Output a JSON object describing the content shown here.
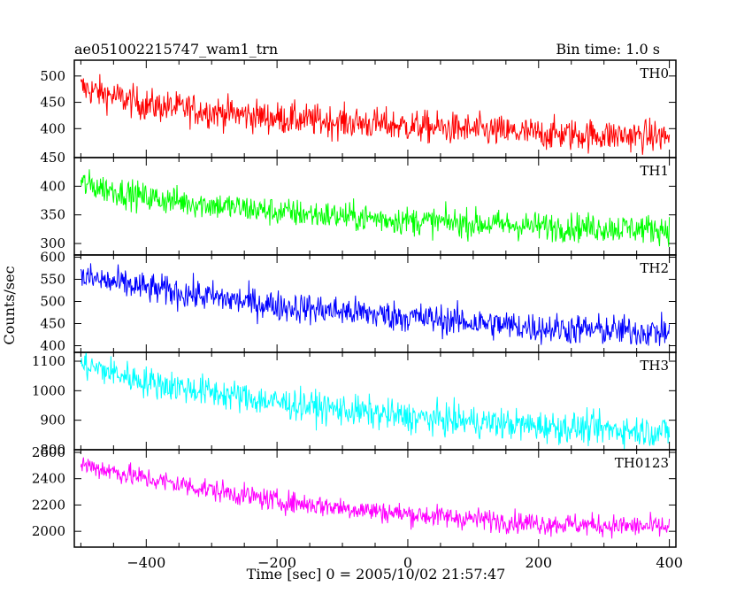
{
  "header": {
    "title": "ae051002215747_wam1_trn",
    "bin_time": "Bin time: 1.0 s"
  },
  "chart_data": {
    "type": "line",
    "xlabel": "Time [sec] 0 = 2005/10/02 21:57:47",
    "ylabel": "Counts/sec",
    "xlim": [
      -510,
      410
    ],
    "xticks": [
      -400,
      -200,
      0,
      200,
      400
    ],
    "xtick_labels": [
      "−400",
      "−200",
      "0",
      "200",
      "400"
    ],
    "grid": false,
    "panels": [
      {
        "name": "TH0",
        "color": "#ff0000",
        "ylim": [
          345,
          530
        ],
        "yticks": [
          400,
          450,
          500
        ],
        "trend": [
          [
            -500,
            478
          ],
          [
            -400,
            445
          ],
          [
            -200,
            420
          ],
          [
            0,
            405
          ],
          [
            200,
            390
          ],
          [
            400,
            385
          ]
        ],
        "noise": 22
      },
      {
        "name": "TH1",
        "color": "#00ff00",
        "ylim": [
          280,
          450
        ],
        "yticks": [
          300,
          350,
          400,
          450
        ],
        "trend": [
          [
            -500,
            405
          ],
          [
            -400,
            380
          ],
          [
            -200,
            355
          ],
          [
            0,
            340
          ],
          [
            200,
            330
          ],
          [
            400,
            325
          ]
        ],
        "noise": 18
      },
      {
        "name": "TH2",
        "color": "#0000ff",
        "ylim": [
          385,
          605
        ],
        "yticks": [
          400,
          450,
          500,
          550,
          600
        ],
        "trend": [
          [
            -500,
            555
          ],
          [
            -400,
            530
          ],
          [
            -200,
            490
          ],
          [
            0,
            465
          ],
          [
            200,
            440
          ],
          [
            400,
            430
          ]
        ],
        "noise": 25
      },
      {
        "name": "TH3",
        "color": "#00ffff",
        "ylim": [
          800,
          1130
        ],
        "yticks": [
          800,
          900,
          1000,
          1100
        ],
        "trend": [
          [
            -500,
            1090
          ],
          [
            -400,
            1030
          ],
          [
            -200,
            960
          ],
          [
            0,
            910
          ],
          [
            200,
            880
          ],
          [
            400,
            860
          ]
        ],
        "noise": 38
      },
      {
        "name": "TH0123",
        "color": "#ff00ff",
        "ylim": [
          1880,
          2620
        ],
        "yticks": [
          2000,
          2200,
          2400,
          2600
        ],
        "trend": [
          [
            -500,
            2510
          ],
          [
            -400,
            2400
          ],
          [
            -200,
            2230
          ],
          [
            0,
            2130
          ],
          [
            200,
            2060
          ],
          [
            400,
            2030
          ]
        ],
        "noise": 60
      }
    ]
  }
}
